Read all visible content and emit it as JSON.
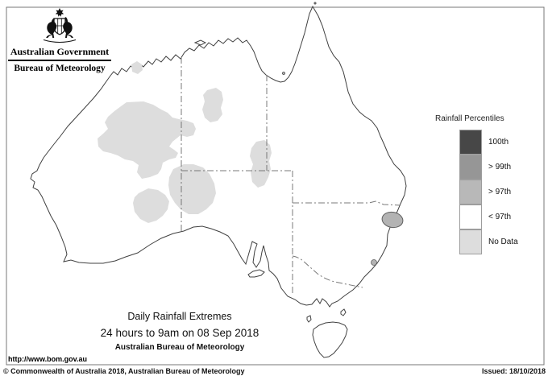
{
  "header": {
    "government": "Australian Government",
    "bureau": "Bureau of Meteorology"
  },
  "legend": {
    "title": "Rainfall Percentiles",
    "items": [
      {
        "label": "100th",
        "color": "#474747"
      },
      {
        "label": "> 99th",
        "color": "#969696"
      },
      {
        "label": "> 97th",
        "color": "#b8b8b8"
      },
      {
        "label": "< 97th",
        "color": "#ffffff"
      },
      {
        "label": "No Data",
        "color": "#dddddd"
      }
    ]
  },
  "map": {
    "title_line1": "Daily Rainfall Extremes",
    "title_line2": "24 hours to 9am on 08 Sep 2018",
    "title_line3": "Australian Bureau of Meteorology"
  },
  "footer": {
    "url": "http://www.bom.gov.au",
    "copyright": "© Commonwealth of Australia 2018, Australian Bureau of Meteorology",
    "issued": "Issued: 18/10/2018"
  },
  "colors": {
    "no_data": "#dddddd",
    "p97": "#b3b3b3",
    "p97_stroke": "#5e5e5e",
    "coast": "#404040",
    "border_dash": "#787878",
    "frame": "#777777"
  }
}
